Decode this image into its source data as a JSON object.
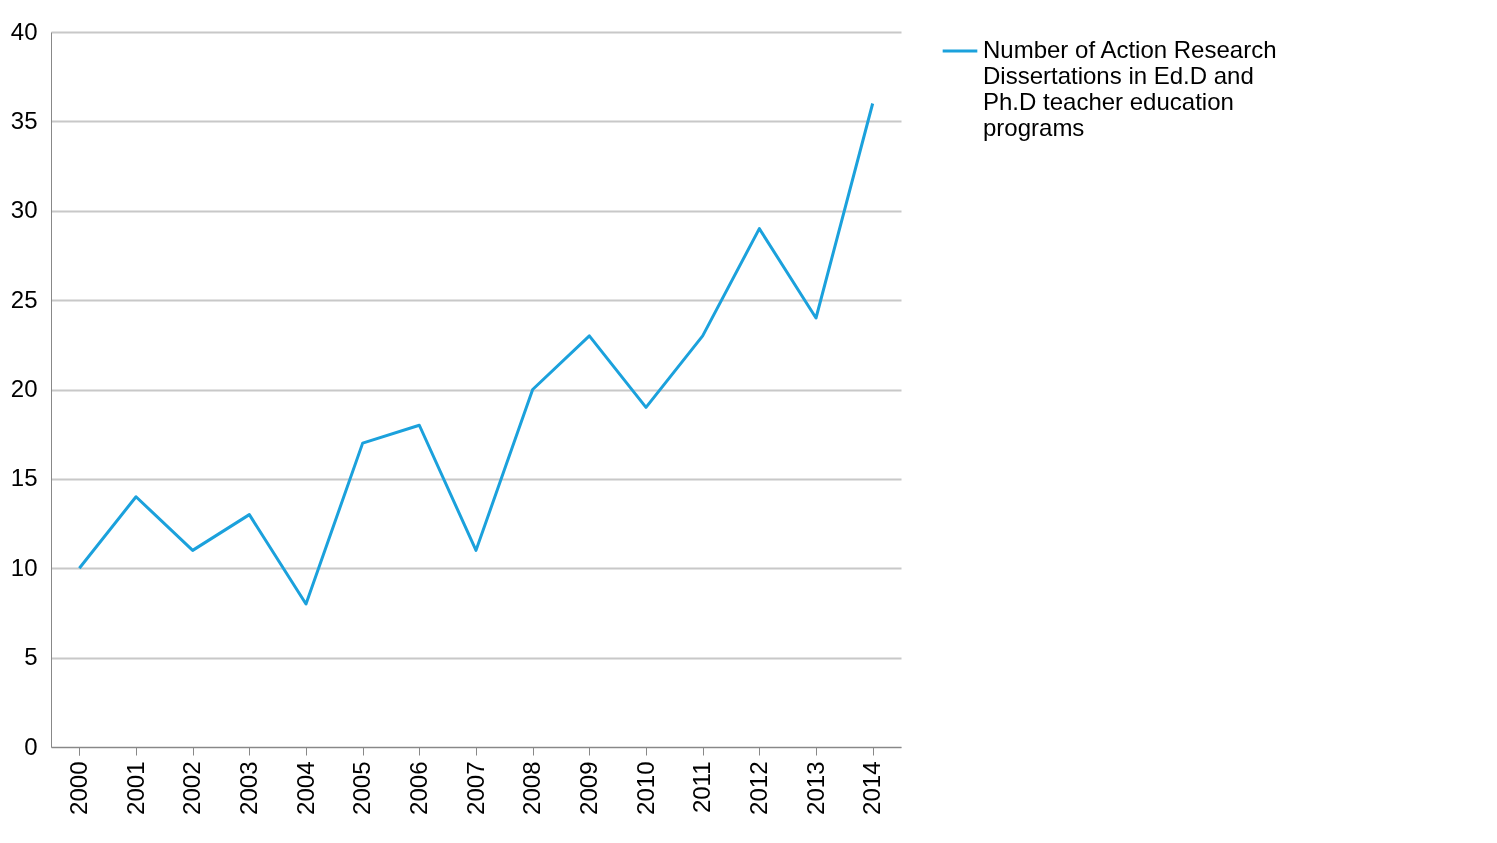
{
  "chart_data": {
    "type": "line",
    "categories": [
      "2000",
      "2001",
      "2002",
      "2003",
      "2004",
      "2005",
      "2006",
      "2007",
      "2008",
      "2009",
      "2010",
      "2011",
      "2012",
      "2013",
      "2014"
    ],
    "series": [
      {
        "name": "Number of Action Research Dissertations in Ed.D and Ph.D teacher education programs",
        "color": "#1ba1dc",
        "values": [
          10,
          14,
          11,
          13,
          8,
          17,
          18,
          11,
          20,
          23,
          19,
          23,
          29,
          24,
          36
        ]
      }
    ],
    "ylim": [
      0,
      40
    ],
    "yticks": [
      0,
      5,
      10,
      15,
      20,
      25,
      30,
      35,
      40
    ],
    "grid": "y",
    "legend": "right",
    "marker": "none"
  }
}
